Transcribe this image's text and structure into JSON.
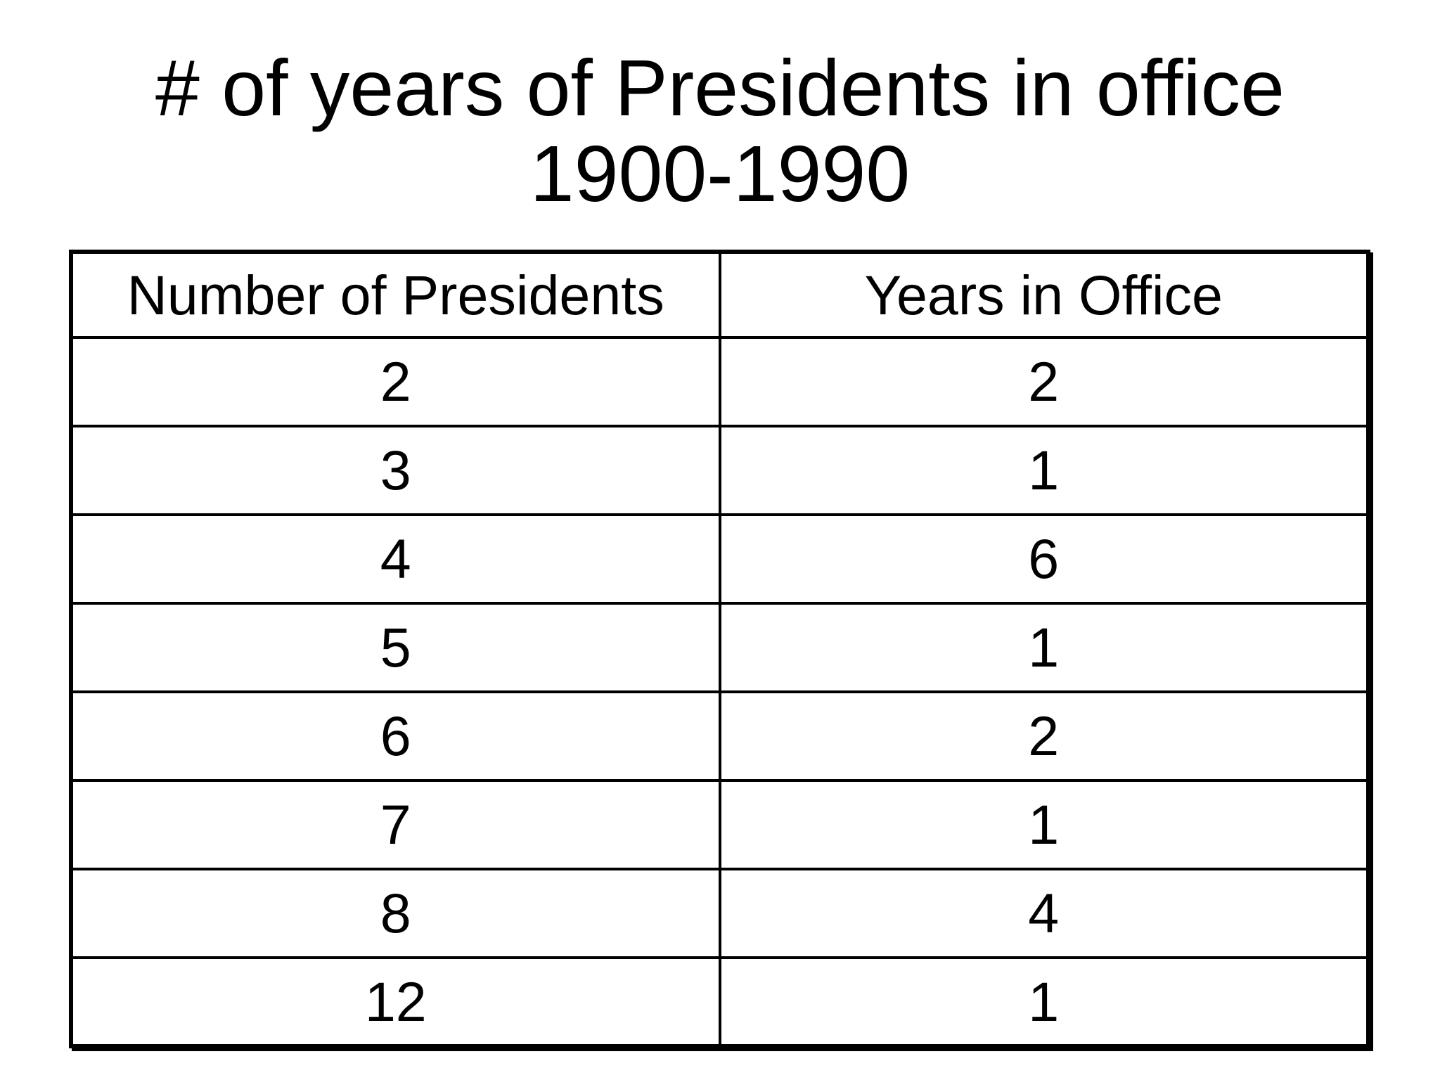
{
  "slide": {
    "background": "#ffffff",
    "text_color": "#000000",
    "border_color": "#000000",
    "title_line1": "# of years of Presidents in office",
    "title_line2": "1900-1990"
  },
  "table": {
    "headers": {
      "presidents": "Number of Presidents",
      "years": "Years in Office"
    },
    "rows": [
      {
        "presidents": "2",
        "years": "2"
      },
      {
        "presidents": "3",
        "years": "1"
      },
      {
        "presidents": "4",
        "years": "6"
      },
      {
        "presidents": "5",
        "years": "1"
      },
      {
        "presidents": "6",
        "years": "2"
      },
      {
        "presidents": "7",
        "years": "1"
      },
      {
        "presidents": "8",
        "years": "4"
      },
      {
        "presidents": "12",
        "years": "1"
      }
    ]
  },
  "chart_data": {
    "type": "table",
    "title": "# of years of Presidents in office 1900-1990",
    "columns": [
      "Number of Presidents",
      "Years in Office"
    ],
    "rows": [
      [
        2,
        2
      ],
      [
        3,
        1
      ],
      [
        4,
        6
      ],
      [
        5,
        1
      ],
      [
        6,
        2
      ],
      [
        7,
        1
      ],
      [
        8,
        4
      ],
      [
        12,
        1
      ]
    ],
    "layout_hints": {
      "header_row": true,
      "grid": "full black borders, thick outer border with small drop shadow",
      "column_alignment": [
        "center",
        "center"
      ]
    }
  }
}
